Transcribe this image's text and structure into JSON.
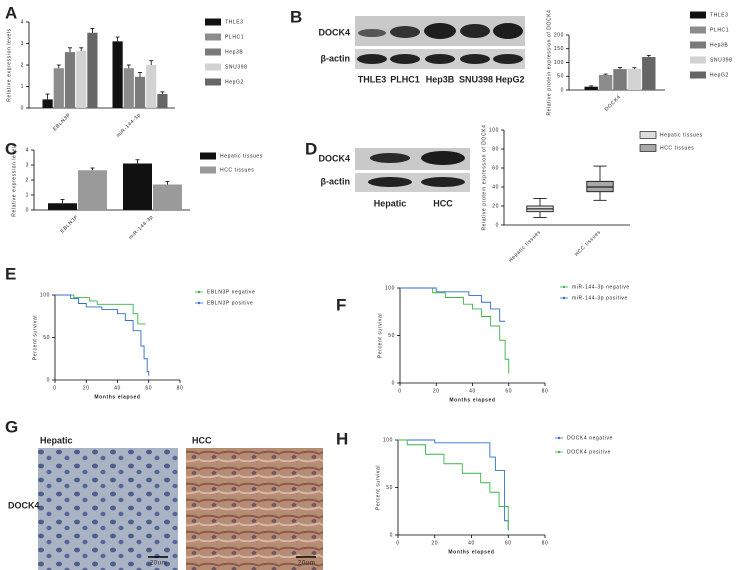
{
  "chart_data": [
    {
      "type": "bar",
      "ylabel": "Relative expression levels",
      "categories": [
        "EBLN3P",
        "miR-144-3p"
      ],
      "ylim": [
        0,
        4
      ],
      "yticks": [
        0,
        1,
        2,
        3,
        4
      ],
      "series": [
        {
          "name": "THLE3",
          "color": "#111111",
          "values": [
            0.4,
            3.1
          ],
          "errors": [
            0.25,
            0.2
          ]
        },
        {
          "name": "PLHC1",
          "color": "#8c8c8c",
          "values": [
            1.85,
            1.85
          ],
          "errors": [
            0.15,
            0.15
          ]
        },
        {
          "name": "Hep3B",
          "color": "#7a7a7a",
          "values": [
            2.6,
            1.45
          ],
          "errors": [
            0.2,
            0.2
          ]
        },
        {
          "name": "SNU398",
          "color": "#d2d2d2",
          "values": [
            2.65,
            2.0
          ],
          "errors": [
            0.15,
            0.2
          ]
        },
        {
          "name": "HepG2",
          "color": "#666666",
          "values": [
            3.5,
            0.65
          ],
          "errors": [
            0.2,
            0.1
          ]
        }
      ]
    },
    {
      "type": "bar",
      "ylabel": "Relative protein expression of DOCK4",
      "categories": [
        "DOCK4"
      ],
      "ylim": [
        0,
        200
      ],
      "yticks": [
        0,
        50,
        100,
        150,
        200
      ],
      "series": [
        {
          "name": "THLE3",
          "color": "#111111",
          "values": [
            12
          ],
          "errors": [
            3
          ]
        },
        {
          "name": "PLHC1",
          "color": "#8c8c8c",
          "values": [
            55
          ],
          "errors": [
            3
          ]
        },
        {
          "name": "Hep3B",
          "color": "#7a7a7a",
          "values": [
            76
          ],
          "errors": [
            6
          ]
        },
        {
          "name": "SNU398",
          "color": "#d2d2d2",
          "values": [
            77
          ],
          "errors": [
            4
          ]
        },
        {
          "name": "HepG2",
          "color": "#666666",
          "values": [
            120
          ],
          "errors": [
            6
          ]
        }
      ]
    },
    {
      "type": "bar",
      "ylabel": "Relative expression levels",
      "categories": [
        "EBLN3P",
        "miR-144-3p"
      ],
      "ylim": [
        0,
        4
      ],
      "yticks": [
        0,
        1,
        2,
        3,
        4
      ],
      "series": [
        {
          "name": "Hepatic tissues",
          "color": "#111111",
          "values": [
            0.45,
            3.1
          ],
          "errors": [
            0.25,
            0.25
          ]
        },
        {
          "name": "HCC tissues",
          "color": "#9a9a9a",
          "values": [
            2.65,
            1.7
          ],
          "errors": [
            0.15,
            0.2
          ]
        }
      ]
    },
    {
      "type": "box",
      "ylabel": "Relative protein expression of DOCK4",
      "categories": [
        "Hepatic tissues",
        "HCC tissues"
      ],
      "ylim": [
        0,
        100
      ],
      "yticks": [
        0,
        20,
        40,
        60,
        80,
        100
      ],
      "series": [
        {
          "name": "Hepatic tissues",
          "color": "#dcdcdc",
          "min": 8,
          "q1": 14,
          "median": 17,
          "q3": 20,
          "max": 28
        },
        {
          "name": "HCC tissues",
          "color": "#a8a8a8",
          "min": 26,
          "q1": 35,
          "median": 40,
          "q3": 46,
          "max": 62
        }
      ]
    },
    {
      "type": "survival",
      "xlabel": "Months elapsed",
      "ylabel": "Percent survival",
      "xlim": [
        0,
        80
      ],
      "xticks": [
        0,
        20,
        40,
        60,
        80
      ],
      "ylim": [
        0,
        100
      ],
      "yticks": [
        0,
        50,
        100
      ],
      "series": [
        {
          "name": "EBLN3P negative",
          "color": "#3cb44b",
          "x": [
            0,
            12,
            22,
            27,
            50,
            53,
            58
          ],
          "values": [
            100,
            97,
            93,
            89,
            78,
            66,
            66
          ]
        },
        {
          "name": "EBLN3P positive",
          "color": "#2f6fd0",
          "x": [
            0,
            10,
            15,
            20,
            30,
            40,
            45,
            50,
            55,
            57,
            59,
            60
          ],
          "values": [
            100,
            96,
            90,
            86,
            83,
            78,
            70,
            58,
            40,
            25,
            10,
            5
          ]
        }
      ]
    },
    {
      "type": "survival",
      "xlabel": "Months elapsed",
      "ylabel": "Percent survival",
      "xlim": [
        0,
        80
      ],
      "xticks": [
        0,
        20,
        40,
        60,
        80
      ],
      "ylim": [
        0,
        100
      ],
      "yticks": [
        0,
        50,
        100
      ],
      "series": [
        {
          "name": "miR-144-3p negative",
          "color": "#3cb44b",
          "x": [
            0,
            18,
            25,
            35,
            40,
            45,
            50,
            55,
            58,
            60
          ],
          "values": [
            100,
            95,
            90,
            83,
            78,
            70,
            60,
            45,
            25,
            10
          ]
        },
        {
          "name": "miR-144-3p positive",
          "color": "#2f6fd0",
          "x": [
            0,
            20,
            38,
            45,
            50,
            55,
            58
          ],
          "values": [
            100,
            96,
            92,
            85,
            78,
            65,
            65
          ]
        }
      ]
    },
    {
      "type": "survival",
      "xlabel": "Months elapsed",
      "ylabel": "Percent survival",
      "xlim": [
        0,
        80
      ],
      "xticks": [
        0,
        20,
        40,
        60,
        80
      ],
      "ylim": [
        0,
        100
      ],
      "yticks": [
        0,
        50,
        100
      ],
      "series": [
        {
          "name": "DOCK4 negative",
          "color": "#2f6fd0",
          "x": [
            0,
            20,
            40,
            50,
            53,
            58,
            60
          ],
          "values": [
            100,
            97,
            97,
            82,
            68,
            15,
            5
          ]
        },
        {
          "name": "DOCK4 positive",
          "color": "#3cb44b",
          "x": [
            0,
            5,
            15,
            25,
            35,
            45,
            50,
            55,
            60
          ],
          "values": [
            100,
            95,
            85,
            75,
            65,
            55,
            45,
            30,
            5
          ]
        }
      ]
    }
  ],
  "panels": {
    "letters": [
      "A",
      "B",
      "C",
      "D",
      "E",
      "F",
      "G",
      "H"
    ],
    "blot_b": {
      "protein": "DOCK4",
      "control": "β-actin",
      "lanes": [
        "THLE3",
        "PLHC1",
        "Hep3B",
        "SNU398",
        "HepG2"
      ]
    },
    "blot_d": {
      "protein": "DOCK4",
      "control": "β-actin",
      "lanes": [
        "Hepatic",
        "HCC"
      ]
    },
    "ihc": {
      "columns": [
        "Hepatic",
        "HCC"
      ],
      "row": "DOCK4",
      "scale_bars": [
        "20um",
        "20um"
      ]
    }
  }
}
